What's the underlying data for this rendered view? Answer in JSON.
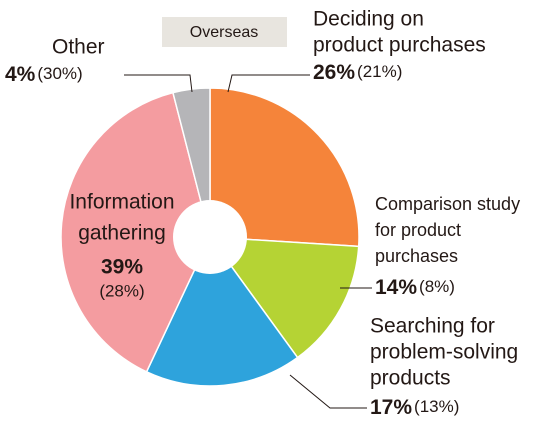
{
  "chart_data": {
    "type": "pie",
    "annotation": "Overseas",
    "categories": [
      [
        "Deciding on",
        "product purchases"
      ],
      [
        "Comparison study",
        "for product",
        "purchases"
      ],
      [
        "Searching for",
        "problem-solving",
        "products"
      ],
      [
        "Information",
        "gathering"
      ],
      [
        "Other"
      ]
    ],
    "values": [
      26,
      14,
      17,
      39,
      4
    ],
    "value_labels": [
      "26%",
      "14%",
      "17%",
      "39%",
      "4%"
    ],
    "overseas_values": [
      21,
      8,
      13,
      28,
      30
    ],
    "overseas_value_labels": [
      "(21%)",
      "(8%)",
      "(13%)",
      "(28%)",
      "(30%)"
    ],
    "colors": [
      "#f5843a",
      "#b5d334",
      "#2ea3dc",
      "#f49ca0",
      "#b5b5b8"
    ]
  }
}
